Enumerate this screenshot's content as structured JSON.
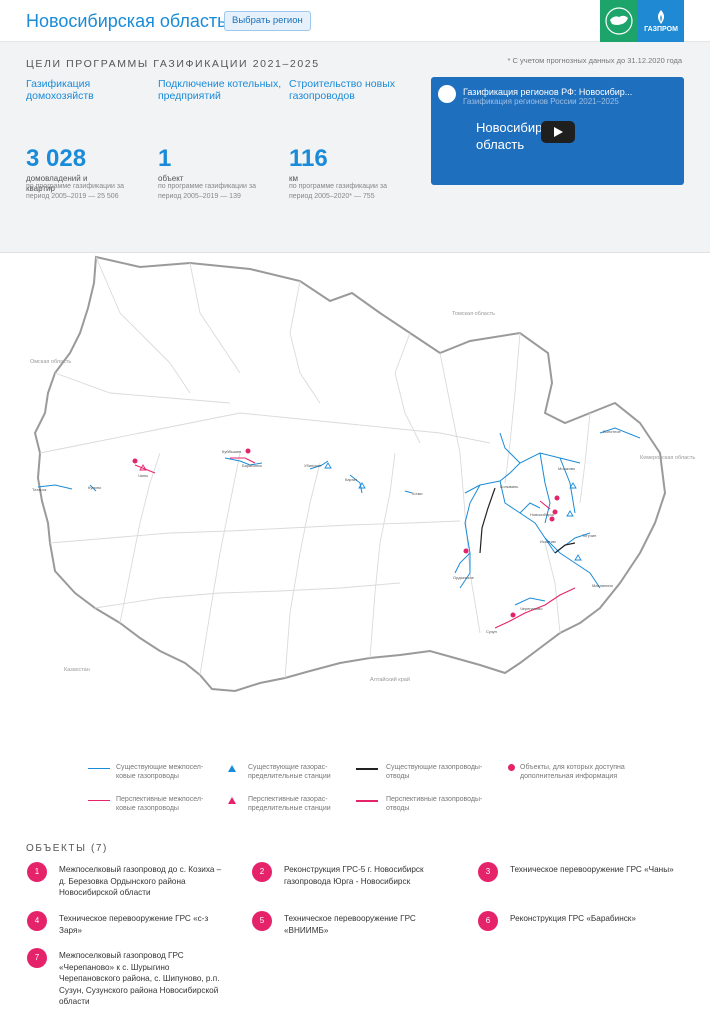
{
  "header": {
    "title": "Новосибирская область",
    "region_button": "Выбрать регион"
  },
  "goals": {
    "title": "ЦЕЛИ ПРОГРАММЫ ГАЗИФИКАЦИИ 2021–2025",
    "note": "* С учетом прогнозных данных до 31.12.2020 года",
    "items": [
      {
        "label": "Газификация домохозяйств",
        "value": "3 028",
        "unit": "домовладений и квартир",
        "sub": "по программе газификации за период 2005–2019 — 25 506"
      },
      {
        "label": "Подключение котельных, предприятий",
        "value": "1",
        "unit": "объект",
        "sub": "по программе газификации за период 2005–2019 — 139"
      },
      {
        "label": "Строительство новых газопроводов",
        "value": "116",
        "unit": "км",
        "sub": "по программе газификации за период 2005–2020* — 755"
      }
    ]
  },
  "video": {
    "title": "Газификация регионов РФ: Новосибир...",
    "subtitle": "Газификация регионов России 2021–2025",
    "caption": "Новосибирская область"
  },
  "map": {
    "neighbors": [
      "Омская область",
      "Томская область",
      "Кемеровская область",
      "Алтайский край",
      "Казахстан"
    ],
    "places": [
      "Кыштовка",
      "Северное",
      "Колывань",
      "Мошково",
      "Болотное",
      "Тогучин",
      "Искитим",
      "Черепаново",
      "Маслянино",
      "Сузун",
      "Барабинск",
      "Куйбышев",
      "Чаны",
      "Карасук",
      "Купино",
      "Татарск",
      "Убинское",
      "Каргат",
      "Кочки",
      "Ордынское",
      "Новосибирск"
    ]
  },
  "legend": {
    "existing_interpipe": "Существующие межпосел-ковые газопроводы",
    "existing_grs": "Существующие газорас-пределительные станции",
    "existing_branch": "Существующие газопроводы-отводы",
    "objects_info": "Объекты, для которых доступна дополнительная информация",
    "planned_interpipe": "Перспективные межпосел-ковые газопроводы",
    "planned_grs": "Перспективные газорас-пределительные станции",
    "planned_branch": "Перспективные газопроводы-отводы",
    "colors": {
      "existing": "#1a8bd8",
      "planned": "#e5236b",
      "branch": "#222222"
    }
  },
  "objects": {
    "title": "ОБЪЕКТЫ (7)",
    "items": [
      {
        "num": "1",
        "text": "Межпоселковый газопровод до с. Козиха – д. Березовка Ордынского района Новосибирской области"
      },
      {
        "num": "2",
        "text": "Реконструкция ГРС-5 г. Новосибирск газопровода Юрга - Новосибирск"
      },
      {
        "num": "3",
        "text": "Техническое перевооружение ГРС «Чаны»"
      },
      {
        "num": "4",
        "text": "Техническое перевооружение ГРС «с-з Заря»"
      },
      {
        "num": "5",
        "text": "Техническое перевооружение ГРС «ВНИИМБ»"
      },
      {
        "num": "6",
        "text": "Реконструкция ГРС «Барабинск»"
      },
      {
        "num": "7",
        "text": "Межпоселковый газопровод ГРС «Черепаново» к с. Шурыгино Черепановского района, с. Шипуново, р.п. Сузун, Сузунского района Новосибирской области"
      }
    ]
  }
}
